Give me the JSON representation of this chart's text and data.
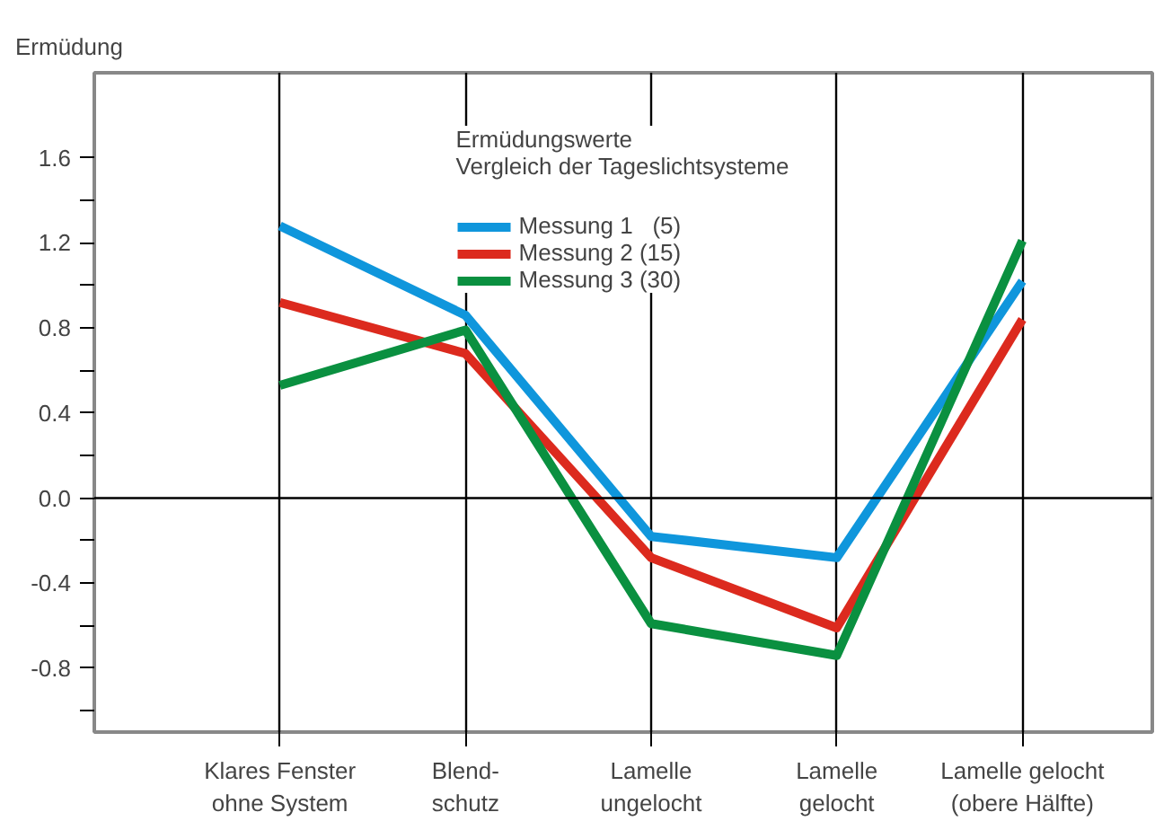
{
  "chart_data": {
    "type": "line",
    "ylabel": "Ermüdung",
    "legend_title": "Ermüdungswerte\nVergleich der Tageslichtsysteme",
    "categories": [
      "Klares Fenster\nohne System",
      "Blend-\nschutz",
      "Lamelle\nungelocht",
      "Lamelle\ngelocht",
      "Lamelle gelocht\n(obere Hälfte)"
    ],
    "series": [
      {
        "name": "Messung 1   (5)",
        "color": "#0f96dc",
        "values": [
          1.28,
          0.86,
          -0.18,
          -0.28,
          1.02
        ]
      },
      {
        "name": "Messung 2 (15)",
        "color": "#dc2a1e",
        "values": [
          0.92,
          0.68,
          -0.28,
          -0.61,
          0.84
        ]
      },
      {
        "name": "Messung 3 (30)",
        "color": "#0a9040",
        "values": [
          0.53,
          0.79,
          -0.59,
          -0.74,
          1.21
        ]
      }
    ],
    "ylim": [
      -1.1,
      2.0
    ],
    "yticks": [
      {
        "value": -1.0,
        "label": null
      },
      -0.8,
      {
        "value": -0.6,
        "label": null
      },
      -0.4,
      {
        "value": -0.2,
        "label": null
      },
      {
        "value": 0,
        "label": "0.0"
      },
      {
        "value": 0.2,
        "label": null
      },
      0.4,
      {
        "value": 0.6,
        "label": null
      },
      0.8,
      {
        "value": 1.0,
        "label": null
      },
      1.2,
      {
        "value": 1.4,
        "label": null
      },
      1.6
    ],
    "ref_lines": [
      {
        "axis": "y",
        "value": 0
      }
    ],
    "grid": "x",
    "legend": "top",
    "line_style": "solid",
    "marker": "none"
  }
}
